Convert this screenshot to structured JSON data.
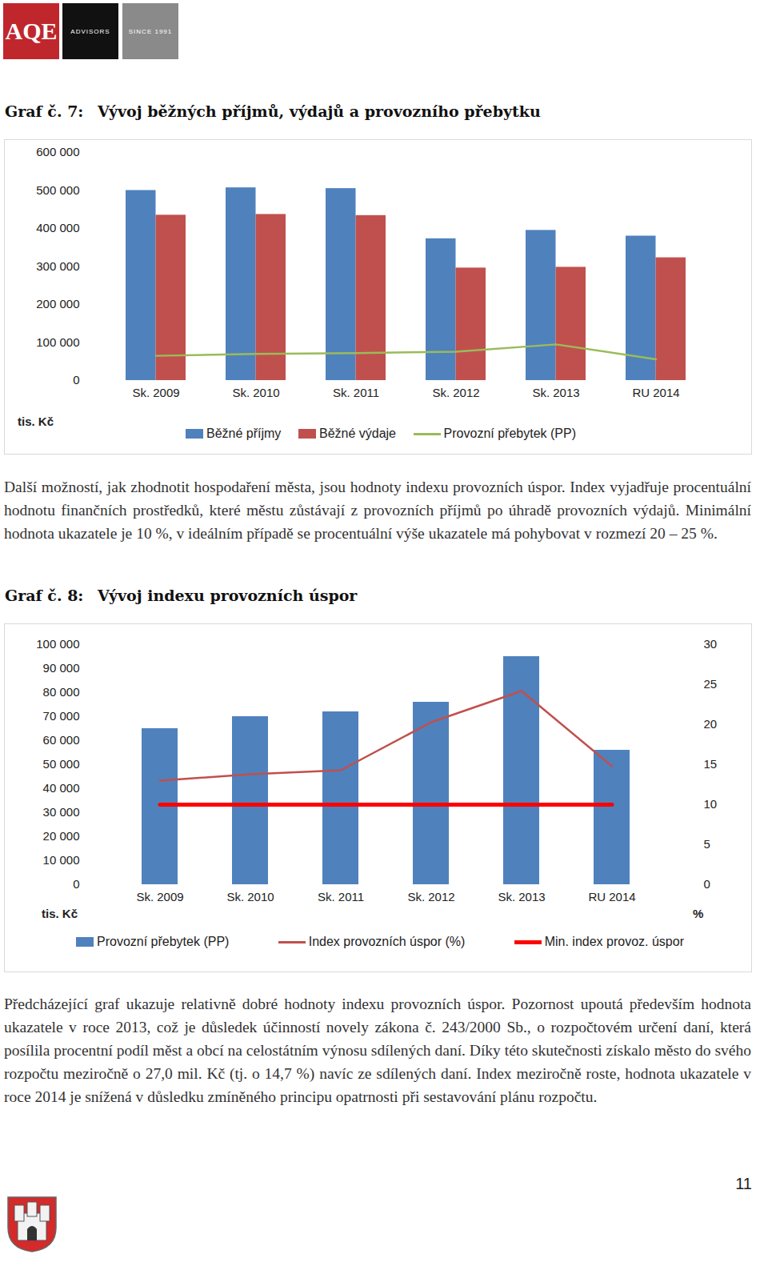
{
  "header": {
    "logo": "AQE",
    "tagline": [
      "ADVISORS",
      "SINCE 1991"
    ]
  },
  "chart_data": [
    {
      "type": "bar",
      "caption_number": "Graf č. 7:",
      "title": "Vývoj běžných příjmů, výdajů a provozního přebytku",
      "y_label": "tis. Kč",
      "categories": [
        "Sk. 2009",
        "Sk. 2010",
        "Sk. 2011",
        "Sk. 2012",
        "Sk. 2013",
        "RU 2014"
      ],
      "series": [
        {
          "name": "Běžné příjmy",
          "type": "bar",
          "color": "#4f81bd",
          "values": [
            500000,
            507000,
            505000,
            373000,
            395000,
            380000
          ]
        },
        {
          "name": "Běžné výdaje",
          "type": "bar",
          "color": "#c0504d",
          "values": [
            435000,
            437000,
            434000,
            296000,
            298000,
            323000
          ]
        },
        {
          "name": "Provozní přebytek (PP)",
          "type": "line",
          "color": "#9bbb59",
          "values": [
            65000,
            70000,
            72000,
            76000,
            95000,
            56000
          ]
        }
      ],
      "ylim": [
        0,
        600000
      ],
      "yticks": [
        0,
        {
          "value": 100000,
          "label": "100 000"
        },
        {
          "value": 200000,
          "label": "200 000"
        },
        {
          "value": 300000,
          "label": "300 000"
        },
        {
          "value": 400000,
          "label": "400 000"
        },
        {
          "value": 500000,
          "label": "500 000"
        },
        {
          "value": 600000,
          "label": "600 000"
        }
      ],
      "grid": false,
      "legend": "bottom"
    },
    {
      "type": "bar",
      "caption_number": "Graf č. 8:",
      "title": "Vývoj indexu provozních úspor",
      "y_label": "tis. Kč",
      "y2_label": "%",
      "categories": [
        "Sk. 2009",
        "Sk. 2010",
        "Sk. 2011",
        "Sk. 2012",
        "Sk. 2013",
        "RU 2014"
      ],
      "series": [
        {
          "name": "Provozní přebytek (PP)",
          "type": "bar",
          "color": "#4f81bd",
          "values": [
            65000,
            70000,
            72000,
            76000,
            95000,
            56000
          ]
        },
        {
          "name": "Index provozních úspor (%)",
          "type": "line",
          "axis": "y2",
          "color": "#c0504d",
          "values": [
            13.0,
            13.8,
            14.3,
            20.3,
            24.2,
            14.8
          ]
        },
        {
          "name": "Min. index provoz. úspor",
          "type": "line",
          "axis": "y2",
          "color": "#ff0000",
          "values": [
            10,
            10,
            10,
            10,
            10,
            10
          ]
        }
      ],
      "ylim": [
        0,
        100000
      ],
      "yticks": [
        0,
        {
          "value": 10000,
          "label": "10 000"
        },
        {
          "value": 20000,
          "label": "20 000"
        },
        {
          "value": 30000,
          "label": "30 000"
        },
        {
          "value": 40000,
          "label": "40 000"
        },
        {
          "value": 50000,
          "label": "50 000"
        },
        {
          "value": 60000,
          "label": "60 000"
        },
        {
          "value": 70000,
          "label": "70 000"
        },
        {
          "value": 80000,
          "label": "80 000"
        },
        {
          "value": 90000,
          "label": "90 000"
        },
        {
          "value": 100000,
          "label": "100 000"
        }
      ],
      "y2lim": [
        0,
        30
      ],
      "y2ticks": [
        0,
        5,
        10,
        15,
        20,
        25,
        30
      ],
      "grid": false,
      "legend": "bottom"
    }
  ],
  "paragraphs": [
    "Další možností, jak zhodnotit hospodaření města, jsou hodnoty indexu provozních úspor. Index vyjadřuje procentuální hodnotu finančních prostředků, které městu zůstávají z provozních příjmů po úhradě provozních výdajů. Minimální hodnota ukazatele je 10 %, v ideálním případě se procentuální výše ukazatele má pohybovat v rozmezí 20 – 25 %.",
    "Předcházející graf ukazuje relativně dobré hodnoty indexu provozních úspor. Pozornost upoutá především hodnota ukazatele v roce 2013, což je důsledek účinností novely zákona č. 243/2000 Sb., o rozpočtovém určení daní, která posílila procentní podíl měst a obcí na celostátním výnosu sdílených daní. Díky této skutečnosti získalo město do svého rozpočtu meziročně o 27,0 mil. Kč (tj. o 14,7 %) navíc ze sdílených daní. Index meziročně roste, hodnota ukazatele v roce 2014 je snížená v důsledku zmíněného principu opatrnosti při sestavování plánu rozpočtu."
  ],
  "page_number": "11"
}
